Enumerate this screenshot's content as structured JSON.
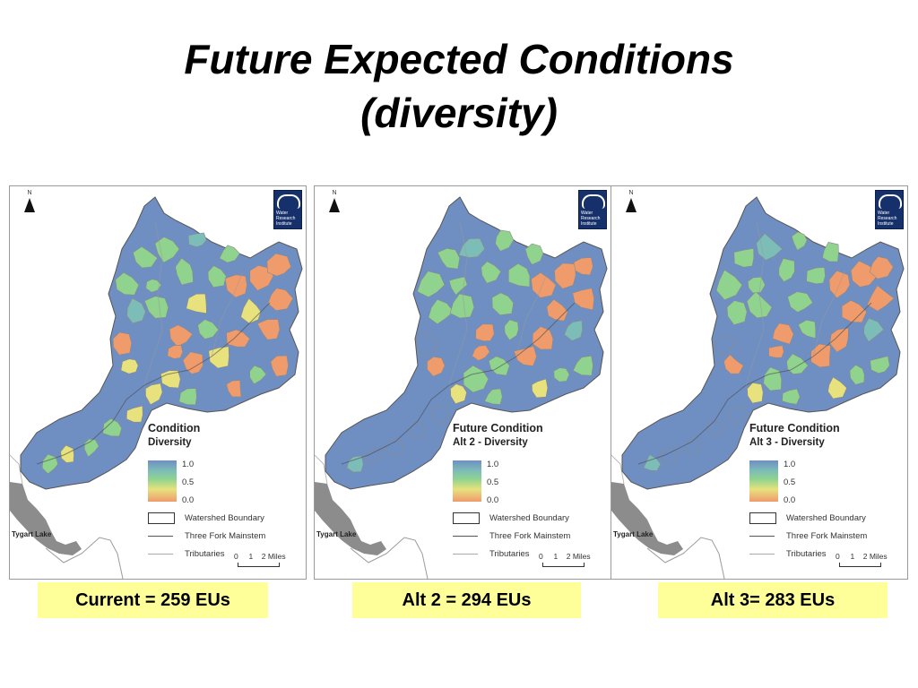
{
  "slide": {
    "title_line1": "Future Expected Conditions",
    "title_line2": "(diversity)"
  },
  "maps": [
    {
      "legend_title": "Condition",
      "legend_subtitle": "Diversity",
      "eu_label": "Current = 259 EUs"
    },
    {
      "legend_title": "Future Condition",
      "legend_subtitle": "Alt 2 - Diversity",
      "eu_label": "Alt 2 = 294 EUs"
    },
    {
      "legend_title": "Future Condition",
      "legend_subtitle": "Alt 3 - Diversity",
      "eu_label": "Alt 3= 283 EUs"
    }
  ],
  "legend": {
    "ticks": [
      "1.0",
      "0.5",
      "0.0"
    ],
    "watershed": "Watershed Boundary",
    "mainstem": "Three Fork Mainstem",
    "tributaries": "Tributaries",
    "scale_ticks": [
      "0",
      "1",
      "2 Miles"
    ]
  },
  "map_common": {
    "north_label": "N",
    "lake_label": "Tygart Lake",
    "logo_text": "Water Research Institute"
  },
  "colors": {
    "high": "#6f8fc2",
    "mid_high": "#7dbdb8",
    "mid": "#8fd38f",
    "low_mid": "#e7e27d",
    "low": "#ef9b6c",
    "eu_background": "#ffff99"
  }
}
